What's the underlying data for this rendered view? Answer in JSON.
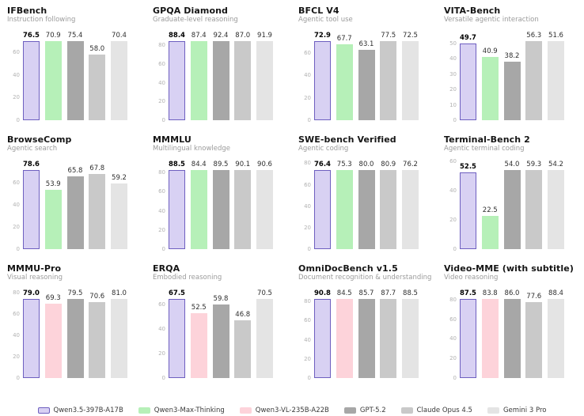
{
  "colors": {
    "series": {
      "purple": {
        "fill": "#d8d1f3",
        "border": "#6e5fc0"
      },
      "green": {
        "fill": "#b6f0b8"
      },
      "pink": {
        "fill": "#fdd3da"
      },
      "dark_gray": {
        "fill": "#a7a7a7"
      },
      "mid_gray": {
        "fill": "#c9c9c9"
      },
      "light_gray": {
        "fill": "#e4e4e4"
      }
    }
  },
  "legend": [
    {
      "label": "Qwen3.5-397B-A17B",
      "color": "purple"
    },
    {
      "label": "Qwen3-Max-Thinking",
      "color": "green"
    },
    {
      "label": "Qwen3-VL-235B-A22B",
      "color": "pink"
    },
    {
      "label": "GPT-5.2",
      "color": "dark_gray"
    },
    {
      "label": "Claude Opus 4.5",
      "color": "mid_gray"
    },
    {
      "label": "Gemini 3 Pro",
      "color": "light_gray"
    }
  ],
  "chart_data": [
    {
      "type": "bar",
      "title": "IFBench",
      "subtitle": "Instruction following",
      "yticks": [
        0,
        20,
        40,
        60
      ],
      "ylim": [
        0,
        78.0
      ],
      "grid": false,
      "series": [
        {
          "name": "Qwen3.5-397B-A17B",
          "value": 76.5,
          "color": "purple"
        },
        {
          "name": "Qwen3-Max-Thinking",
          "value": 70.9,
          "color": "green"
        },
        {
          "name": "GPT-5.2",
          "value": 75.4,
          "color": "dark_gray"
        },
        {
          "name": "Claude Opus 4.5",
          "value": 58.0,
          "color": "mid_gray"
        },
        {
          "name": "Gemini 3 Pro",
          "value": 70.4,
          "color": "light_gray"
        }
      ]
    },
    {
      "type": "bar",
      "title": "GPQA Diamond",
      "subtitle": "Graduate-level reasoning",
      "yticks": [
        0,
        20,
        40,
        60,
        80
      ],
      "ylim": [
        0,
        94.5
      ],
      "grid": false,
      "series": [
        {
          "name": "Qwen3.5-397B-A17B",
          "value": 88.4,
          "color": "purple"
        },
        {
          "name": "Qwen3-Max-Thinking",
          "value": 87.4,
          "color": "green"
        },
        {
          "name": "GPT-5.2",
          "value": 92.4,
          "color": "dark_gray"
        },
        {
          "name": "Claude Opus 4.5",
          "value": 87.0,
          "color": "mid_gray"
        },
        {
          "name": "Gemini 3 Pro",
          "value": 91.9,
          "color": "light_gray"
        }
      ]
    },
    {
      "type": "bar",
      "title": "BFCL V4",
      "subtitle": "Agentic tool use",
      "yticks": [
        0,
        20,
        40,
        60
      ],
      "ylim": [
        0,
        79.0
      ],
      "grid": false,
      "series": [
        {
          "name": "Qwen3.5-397B-A17B",
          "value": 72.9,
          "color": "purple"
        },
        {
          "name": "Qwen3-Max-Thinking",
          "value": 67.7,
          "color": "green"
        },
        {
          "name": "GPT-5.2",
          "value": 63.1,
          "color": "dark_gray"
        },
        {
          "name": "Claude Opus 4.5",
          "value": 77.5,
          "color": "mid_gray"
        },
        {
          "name": "Gemini 3 Pro",
          "value": 72.5,
          "color": "light_gray"
        }
      ]
    },
    {
      "type": "bar",
      "title": "VITA-Bench",
      "subtitle": "Versatile agentic interaction",
      "yticks": [
        0,
        10,
        20,
        30,
        40,
        50
      ],
      "ylim": [
        0,
        57.5
      ],
      "grid": false,
      "series": [
        {
          "name": "Qwen3.5-397B-A17B",
          "value": 49.7,
          "color": "purple"
        },
        {
          "name": "Qwen3-Max-Thinking",
          "value": 40.9,
          "color": "green"
        },
        {
          "name": "GPT-5.2",
          "value": 38.2,
          "color": "dark_gray"
        },
        {
          "name": "Claude Opus 4.5",
          "value": 56.3,
          "color": "mid_gray"
        },
        {
          "name": "Gemini 3 Pro",
          "value": 51.6,
          "color": "light_gray"
        }
      ]
    },
    {
      "type": "bar",
      "title": "BrowseComp",
      "subtitle": "Agentic search",
      "yticks": [
        0,
        20,
        40,
        60
      ],
      "ylim": [
        0,
        80.2
      ],
      "grid": false,
      "series": [
        {
          "name": "Qwen3.5-397B-A17B",
          "value": 78.6,
          "color": "purple"
        },
        {
          "name": "Qwen3-Max-Thinking",
          "value": 53.9,
          "color": "green"
        },
        {
          "name": "GPT-5.2",
          "value": 65.8,
          "color": "dark_gray"
        },
        {
          "name": "Claude Opus 4.5",
          "value": 67.8,
          "color": "mid_gray"
        },
        {
          "name": "Gemini 3 Pro",
          "value": 59.2,
          "color": "light_gray"
        }
      ]
    },
    {
      "type": "bar",
      "title": "MMMLU",
      "subtitle": "Multilingual knowledge",
      "yticks": [
        0,
        20,
        40,
        60,
        80
      ],
      "ylim": [
        0,
        92.5
      ],
      "grid": false,
      "series": [
        {
          "name": "Qwen3.5-397B-A17B",
          "value": 88.5,
          "color": "purple"
        },
        {
          "name": "Qwen3-Max-Thinking",
          "value": 84.4,
          "color": "green"
        },
        {
          "name": "GPT-5.2",
          "value": 89.5,
          "color": "dark_gray"
        },
        {
          "name": "Claude Opus 4.5",
          "value": 90.1,
          "color": "mid_gray"
        },
        {
          "name": "Gemini 3 Pro",
          "value": 90.6,
          "color": "light_gray"
        }
      ]
    },
    {
      "type": "bar",
      "title": "SWE-bench Verified",
      "subtitle": "Agentic coding",
      "yticks": [
        0,
        20,
        40,
        60,
        80
      ],
      "ylim": [
        0,
        82.5
      ],
      "grid": false,
      "series": [
        {
          "name": "Qwen3.5-397B-A17B",
          "value": 76.4,
          "color": "purple"
        },
        {
          "name": "Qwen3-Max-Thinking",
          "value": 75.3,
          "color": "green"
        },
        {
          "name": "GPT-5.2",
          "value": 80.0,
          "color": "dark_gray"
        },
        {
          "name": "Claude Opus 4.5",
          "value": 80.9,
          "color": "mid_gray"
        },
        {
          "name": "Gemini 3 Pro",
          "value": 76.2,
          "color": "light_gray"
        }
      ]
    },
    {
      "type": "bar",
      "title": "Terminal-Bench 2",
      "subtitle": "Agentic terminal coding",
      "yticks": [
        0,
        20,
        40,
        60
      ],
      "ylim": [
        0,
        60.5
      ],
      "grid": false,
      "series": [
        {
          "name": "Qwen3.5-397B-A17B",
          "value": 52.5,
          "color": "purple"
        },
        {
          "name": "Qwen3-Max-Thinking",
          "value": 22.5,
          "color": "green"
        },
        {
          "name": "GPT-5.2",
          "value": 54.0,
          "color": "dark_gray"
        },
        {
          "name": "Claude Opus 4.5",
          "value": 59.3,
          "color": "mid_gray"
        },
        {
          "name": "Gemini 3 Pro",
          "value": 54.2,
          "color": "light_gray"
        }
      ]
    },
    {
      "type": "bar",
      "title": "MMMU-Pro",
      "subtitle": "Visual reasoning",
      "yticks": [
        0,
        20,
        40,
        60,
        80
      ],
      "ylim": [
        0,
        82.6
      ],
      "grid": false,
      "series": [
        {
          "name": "Qwen3.5-397B-A17B",
          "value": 79.0,
          "color": "purple"
        },
        {
          "name": "Qwen3-VL-235B-A22B",
          "value": 69.3,
          "color": "pink"
        },
        {
          "name": "GPT-5.2",
          "value": 79.5,
          "color": "dark_gray"
        },
        {
          "name": "Claude Opus 4.5",
          "value": 70.6,
          "color": "mid_gray"
        },
        {
          "name": "Gemini 3 Pro",
          "value": 81.0,
          "color": "light_gray"
        }
      ]
    },
    {
      "type": "bar",
      "title": "ERQA",
      "subtitle": "Embodied reasoning",
      "yticks": [
        0,
        20,
        40,
        60
      ],
      "ylim": [
        0,
        72.0
      ],
      "grid": false,
      "series": [
        {
          "name": "Qwen3.5-397B-A17B",
          "value": 67.5,
          "color": "purple"
        },
        {
          "name": "Qwen3-VL-235B-A22B",
          "value": 52.5,
          "color": "pink"
        },
        {
          "name": "GPT-5.2",
          "value": 59.8,
          "color": "dark_gray"
        },
        {
          "name": "Claude Opus 4.5",
          "value": 46.8,
          "color": "mid_gray"
        },
        {
          "name": "Gemini 3 Pro",
          "value": 70.5,
          "color": "light_gray"
        }
      ]
    },
    {
      "type": "bar",
      "title": "OmniDocBench v1.5",
      "subtitle": "Document recognition & understanding",
      "yticks": [
        0,
        20,
        40,
        60,
        80
      ],
      "ylim": [
        0,
        92.6
      ],
      "grid": false,
      "series": [
        {
          "name": "Qwen3.5-397B-A17B",
          "value": 90.8,
          "color": "purple"
        },
        {
          "name": "Qwen3-VL-235B-A22B",
          "value": 84.5,
          "color": "pink"
        },
        {
          "name": "GPT-5.2",
          "value": 85.7,
          "color": "dark_gray"
        },
        {
          "name": "Claude Opus 4.5",
          "value": 87.7,
          "color": "mid_gray"
        },
        {
          "name": "Gemini 3 Pro",
          "value": 88.5,
          "color": "light_gray"
        }
      ]
    },
    {
      "type": "bar",
      "title": "Video-MME (with subtitle)",
      "subtitle": "Video reasoning",
      "yticks": [
        0,
        20,
        40,
        60,
        80
      ],
      "ylim": [
        0,
        90.2
      ],
      "grid": false,
      "series": [
        {
          "name": "Qwen3.5-397B-A17B",
          "value": 87.5,
          "color": "purple"
        },
        {
          "name": "Qwen3-VL-235B-A22B",
          "value": 83.8,
          "color": "pink"
        },
        {
          "name": "GPT-5.2",
          "value": 86.0,
          "color": "dark_gray"
        },
        {
          "name": "Claude Opus 4.5",
          "value": 77.6,
          "color": "mid_gray"
        },
        {
          "name": "Gemini 3 Pro",
          "value": 88.4,
          "color": "light_gray"
        }
      ]
    }
  ]
}
